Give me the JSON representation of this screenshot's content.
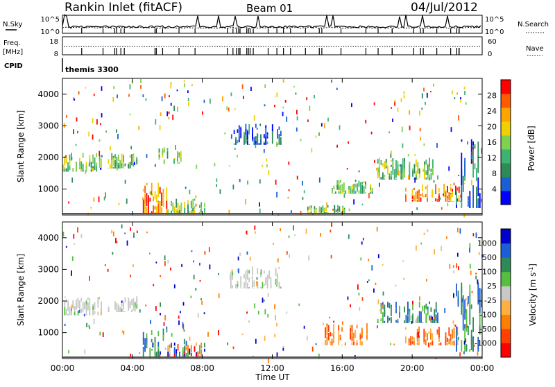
{
  "header": {
    "station": "Rankin Inlet (fitACF)",
    "beam": "Beam 01",
    "date": "04/Jul/2012"
  },
  "noise_panel": {
    "left_label": "N.Sky",
    "right_label": "N.Search",
    "left_ticks": [
      "10^5",
      "10^0"
    ],
    "right_ticks": [
      "10^5",
      "10^0"
    ]
  },
  "freq_panel": {
    "left_label_line1": "Freq.",
    "left_label_line2": "[MHz]",
    "right_label": "Nave",
    "left_ticks": [
      "18",
      "8"
    ],
    "right_ticks": [
      "60",
      "0"
    ]
  },
  "cpid": {
    "label": "CPID",
    "value": "themis 3300"
  },
  "x_axis": {
    "title": "Time UT",
    "ticks": [
      "00:00",
      "04:00",
      "08:00",
      "12:00",
      "16:00",
      "20:00",
      "00:00"
    ]
  },
  "colors": {
    "power_scale": [
      "#0000ff",
      "#1a5fd6",
      "#2e8b57",
      "#3cb371",
      "#7fd14f",
      "#f0d000",
      "#ffa500",
      "#ff5a00",
      "#ff0000"
    ],
    "velocity_scale": [
      "#ff0000",
      "#ff4000",
      "#ff8000",
      "#ffb040",
      "#c8c8c8",
      "#55c040",
      "#2e8b57",
      "#1a5fd6",
      "#0000cc"
    ]
  },
  "chart_data": [
    {
      "type": "heatmap",
      "name": "power",
      "ylabel": "Slant Range [km]",
      "xlabel": "",
      "xlim": [
        0,
        24
      ],
      "ylim": [
        180,
        4500
      ],
      "y_ticks": [
        "1000",
        "2000",
        "3000",
        "4000"
      ],
      "colorbar_label": "Power [dB]",
      "colorbar_ticks": [
        "4",
        "8",
        "12",
        "16",
        "20",
        "24",
        "28"
      ],
      "patches": [
        {
          "t": [
            0.0,
            2.3
          ],
          "r": [
            1550,
            2150
          ],
          "level": "mixed"
        },
        {
          "t": [
            2.6,
            4.3
          ],
          "r": [
            1650,
            2150
          ],
          "level": "mixed"
        },
        {
          "t": [
            4.5,
            6.0
          ],
          "r": [
            200,
            1200
          ],
          "level": "strong"
        },
        {
          "t": [
            6.0,
            8.2
          ],
          "r": [
            200,
            700
          ],
          "level": "mixed"
        },
        {
          "t": [
            5.5,
            6.8
          ],
          "r": [
            1800,
            2300
          ],
          "level": "mixed"
        },
        {
          "t": [
            9.5,
            12.5
          ],
          "r": [
            2400,
            3100
          ],
          "level": "weak"
        },
        {
          "t": [
            14.0,
            16.2
          ],
          "r": [
            200,
            500
          ],
          "level": "mixed"
        },
        {
          "t": [
            15.3,
            17.8
          ],
          "r": [
            850,
            1300
          ],
          "level": "mixed"
        },
        {
          "t": [
            18.0,
            21.5
          ],
          "r": [
            1300,
            2000
          ],
          "level": "mixed"
        },
        {
          "t": [
            19.5,
            22.8
          ],
          "r": [
            600,
            1200
          ],
          "level": "strong"
        },
        {
          "t": [
            22.5,
            24.0
          ],
          "r": [
            400,
            2600
          ],
          "level": "weak"
        }
      ]
    },
    {
      "type": "heatmap",
      "name": "velocity",
      "ylabel": "Slant Range [km]",
      "xlabel": "Time UT",
      "xlim": [
        0,
        24
      ],
      "ylim": [
        180,
        4500
      ],
      "y_ticks": [
        "1000",
        "2000",
        "3000",
        "4000"
      ],
      "colorbar_label": "Velocity [m s^-1]",
      "colorbar_ticks": [
        "1000",
        "500",
        "100",
        "25",
        "-25",
        "-100",
        "-500",
        "-1000"
      ],
      "patches": [
        {
          "t": [
            0.0,
            2.3
          ],
          "r": [
            1550,
            2150
          ],
          "level": "ground"
        },
        {
          "t": [
            2.6,
            4.3
          ],
          "r": [
            1650,
            2150
          ],
          "level": "ground"
        },
        {
          "t": [
            4.5,
            6.0
          ],
          "r": [
            200,
            1200
          ],
          "level": "toward"
        },
        {
          "t": [
            6.0,
            8.2
          ],
          "r": [
            200,
            700
          ],
          "level": "mixed"
        },
        {
          "t": [
            9.5,
            12.5
          ],
          "r": [
            2400,
            3100
          ],
          "level": "ground"
        },
        {
          "t": [
            15.0,
            17.5
          ],
          "r": [
            600,
            1300
          ],
          "level": "away"
        },
        {
          "t": [
            18.0,
            21.5
          ],
          "r": [
            1300,
            2000
          ],
          "level": "toward"
        },
        {
          "t": [
            19.5,
            22.8
          ],
          "r": [
            600,
            1200
          ],
          "level": "away"
        },
        {
          "t": [
            22.5,
            24.0
          ],
          "r": [
            400,
            2600
          ],
          "level": "toward"
        }
      ]
    }
  ]
}
